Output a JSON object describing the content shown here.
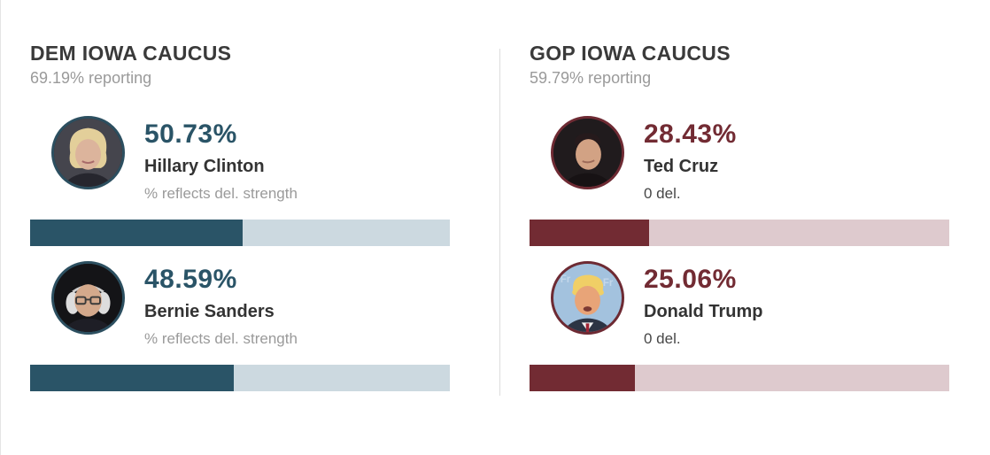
{
  "chart_data": [
    {
      "type": "bar",
      "title": "DEM IOWA CAUCUS",
      "subtitle": "69.19% reporting",
      "categories": [
        "Hillary Clinton",
        "Bernie Sanders"
      ],
      "values": [
        50.73,
        48.59
      ],
      "value_labels": [
        "50.73%",
        "48.59%"
      ],
      "notes": [
        "% reflects del. strength",
        "% reflects del. strength"
      ],
      "xlim": [
        0,
        100
      ],
      "bar_color": "#2a5467",
      "track_color": "#ccd9e0",
      "ring_color": "#2c4f60",
      "legend_position": "none",
      "grid": false,
      "avatars": [
        "hillary-clinton-photo",
        "bernie-sanders-photo"
      ]
    },
    {
      "type": "bar",
      "title": "GOP IOWA CAUCUS",
      "subtitle": "59.79% reporting",
      "categories": [
        "Ted Cruz",
        "Donald Trump"
      ],
      "values": [
        28.43,
        25.06
      ],
      "value_labels": [
        "28.43%",
        "25.06%"
      ],
      "notes": [
        "0 del.",
        "0 del."
      ],
      "xlim": [
        0,
        100
      ],
      "bar_color": "#722b33",
      "track_color": "#decace",
      "ring_color": "#6e2a33",
      "legend_position": "none",
      "grid": false,
      "avatars": [
        "ted-cruz-photo",
        "donald-trump-photo"
      ]
    }
  ],
  "colors": {
    "background": "#ffffff",
    "title_text": "#3a3a3a",
    "name_text": "#333333",
    "muted_text": "#9a9a9a",
    "divider": "#dddddd"
  }
}
